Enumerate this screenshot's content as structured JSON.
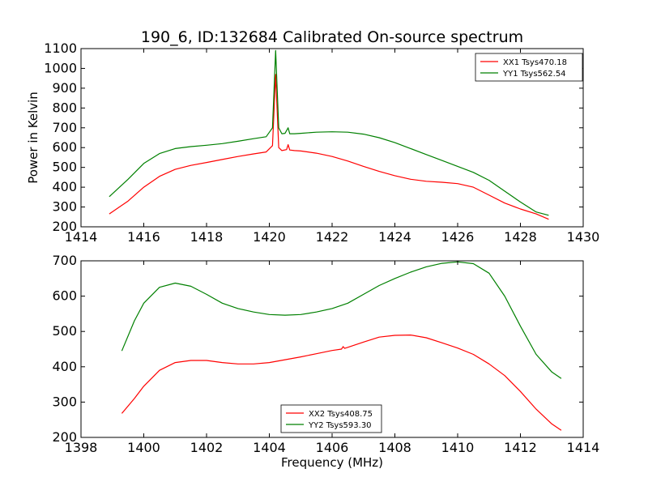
{
  "chart_data": [
    {
      "type": "line",
      "title": "190_6, ID:132684 Calibrated On-source spectrum",
      "xlabel": "",
      "ylabel": "Power in Kelvin",
      "xlim": [
        1414,
        1430
      ],
      "ylim": [
        200,
        1100
      ],
      "xticks": [
        1414,
        1416,
        1418,
        1420,
        1422,
        1424,
        1426,
        1428,
        1430
      ],
      "yticks": [
        200,
        300,
        400,
        500,
        600,
        700,
        800,
        900,
        1000,
        1100
      ],
      "legend_position": "top-right",
      "series": [
        {
          "name": "XX1 Tsys470.18",
          "color": "#ff0000",
          "x": [
            1414.9,
            1415.5,
            1416.0,
            1416.5,
            1417.0,
            1417.5,
            1418.0,
            1418.5,
            1419.0,
            1419.5,
            1419.9,
            1420.1,
            1420.2,
            1420.3,
            1420.4,
            1420.55,
            1420.6,
            1420.65,
            1420.8,
            1421.0,
            1421.5,
            1422.0,
            1422.5,
            1423.0,
            1423.5,
            1424.0,
            1424.5,
            1425.0,
            1425.5,
            1426.0,
            1426.5,
            1427.0,
            1427.5,
            1428.0,
            1428.5,
            1428.9
          ],
          "values": [
            265,
            330,
            400,
            455,
            490,
            510,
            525,
            540,
            555,
            568,
            578,
            610,
            970,
            600,
            585,
            590,
            615,
            588,
            585,
            583,
            572,
            555,
            532,
            505,
            480,
            458,
            440,
            430,
            425,
            418,
            400,
            360,
            320,
            290,
            265,
            238
          ]
        },
        {
          "name": "YY1 Tsys562.54",
          "color": "#008000",
          "x": [
            1414.9,
            1415.5,
            1416.0,
            1416.5,
            1417.0,
            1417.5,
            1418.0,
            1418.5,
            1419.0,
            1419.5,
            1419.9,
            1420.1,
            1420.2,
            1420.3,
            1420.4,
            1420.5,
            1420.6,
            1420.65,
            1420.8,
            1421.0,
            1421.5,
            1422.0,
            1422.5,
            1423.0,
            1423.5,
            1424.0,
            1424.5,
            1425.0,
            1425.5,
            1426.0,
            1426.5,
            1427.0,
            1427.5,
            1428.0,
            1428.5,
            1428.9
          ],
          "values": [
            352,
            440,
            520,
            570,
            595,
            605,
            612,
            620,
            632,
            645,
            655,
            700,
            1090,
            700,
            670,
            672,
            700,
            670,
            670,
            672,
            678,
            680,
            678,
            668,
            650,
            625,
            595,
            565,
            535,
            505,
            475,
            435,
            380,
            325,
            275,
            258
          ]
        }
      ]
    },
    {
      "type": "line",
      "title": "",
      "xlabel": "Frequency (MHz)",
      "ylabel": "",
      "xlim": [
        1398,
        1414
      ],
      "ylim": [
        200,
        700
      ],
      "xticks": [
        1398,
        1400,
        1402,
        1404,
        1406,
        1408,
        1410,
        1412,
        1414
      ],
      "yticks": [
        200,
        300,
        400,
        500,
        600,
        700
      ],
      "legend_position": "lower-center",
      "series": [
        {
          "name": "XX2 Tsys408.75",
          "color": "#ff0000",
          "x": [
            1399.3,
            1399.7,
            1400.0,
            1400.5,
            1401.0,
            1401.5,
            1402.0,
            1402.5,
            1403.0,
            1403.5,
            1404.0,
            1404.5,
            1405.0,
            1405.5,
            1406.0,
            1406.3,
            1406.35,
            1406.4,
            1406.5,
            1407.0,
            1407.5,
            1408.0,
            1408.5,
            1409.0,
            1409.5,
            1410.0,
            1410.5,
            1411.0,
            1411.5,
            1412.0,
            1412.5,
            1413.0,
            1413.3
          ],
          "values": [
            268,
            310,
            345,
            390,
            412,
            418,
            418,
            412,
            408,
            408,
            412,
            420,
            428,
            437,
            446,
            450,
            457,
            452,
            455,
            470,
            484,
            489,
            490,
            482,
            468,
            453,
            435,
            408,
            375,
            330,
            280,
            238,
            220
          ]
        },
        {
          "name": "YY2 Tsys593.30",
          "color": "#008000",
          "x": [
            1399.3,
            1399.7,
            1400.0,
            1400.5,
            1401.0,
            1401.5,
            1402.0,
            1402.5,
            1403.0,
            1403.5,
            1404.0,
            1404.5,
            1405.0,
            1405.5,
            1406.0,
            1406.5,
            1407.0,
            1407.5,
            1408.0,
            1408.5,
            1409.0,
            1409.5,
            1410.0,
            1410.5,
            1411.0,
            1411.5,
            1412.0,
            1412.5,
            1413.0,
            1413.3
          ],
          "values": [
            445,
            530,
            580,
            625,
            637,
            628,
            605,
            580,
            565,
            555,
            548,
            546,
            548,
            555,
            565,
            580,
            605,
            630,
            650,
            668,
            683,
            693,
            697,
            692,
            665,
            600,
            515,
            435,
            385,
            367
          ]
        }
      ]
    }
  ]
}
